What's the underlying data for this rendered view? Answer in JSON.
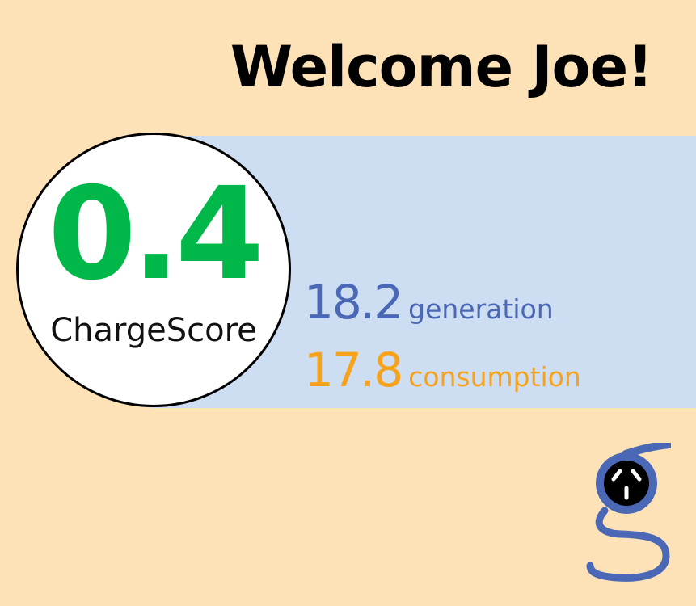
{
  "header": {
    "welcome": "Welcome Joe!"
  },
  "score": {
    "value": "0.4",
    "label": "ChargeScore"
  },
  "metrics": [
    {
      "value": "18.2",
      "label": "generation"
    },
    {
      "value": "17.8",
      "label": "consumption"
    }
  ],
  "colors": {
    "background": "#fde2b8",
    "band": "#cedef2",
    "score": "#00b84a",
    "generation": "#4a68b5",
    "consumption": "#f7a21b"
  },
  "logo": {
    "icon": "g-plug-logo-icon"
  }
}
